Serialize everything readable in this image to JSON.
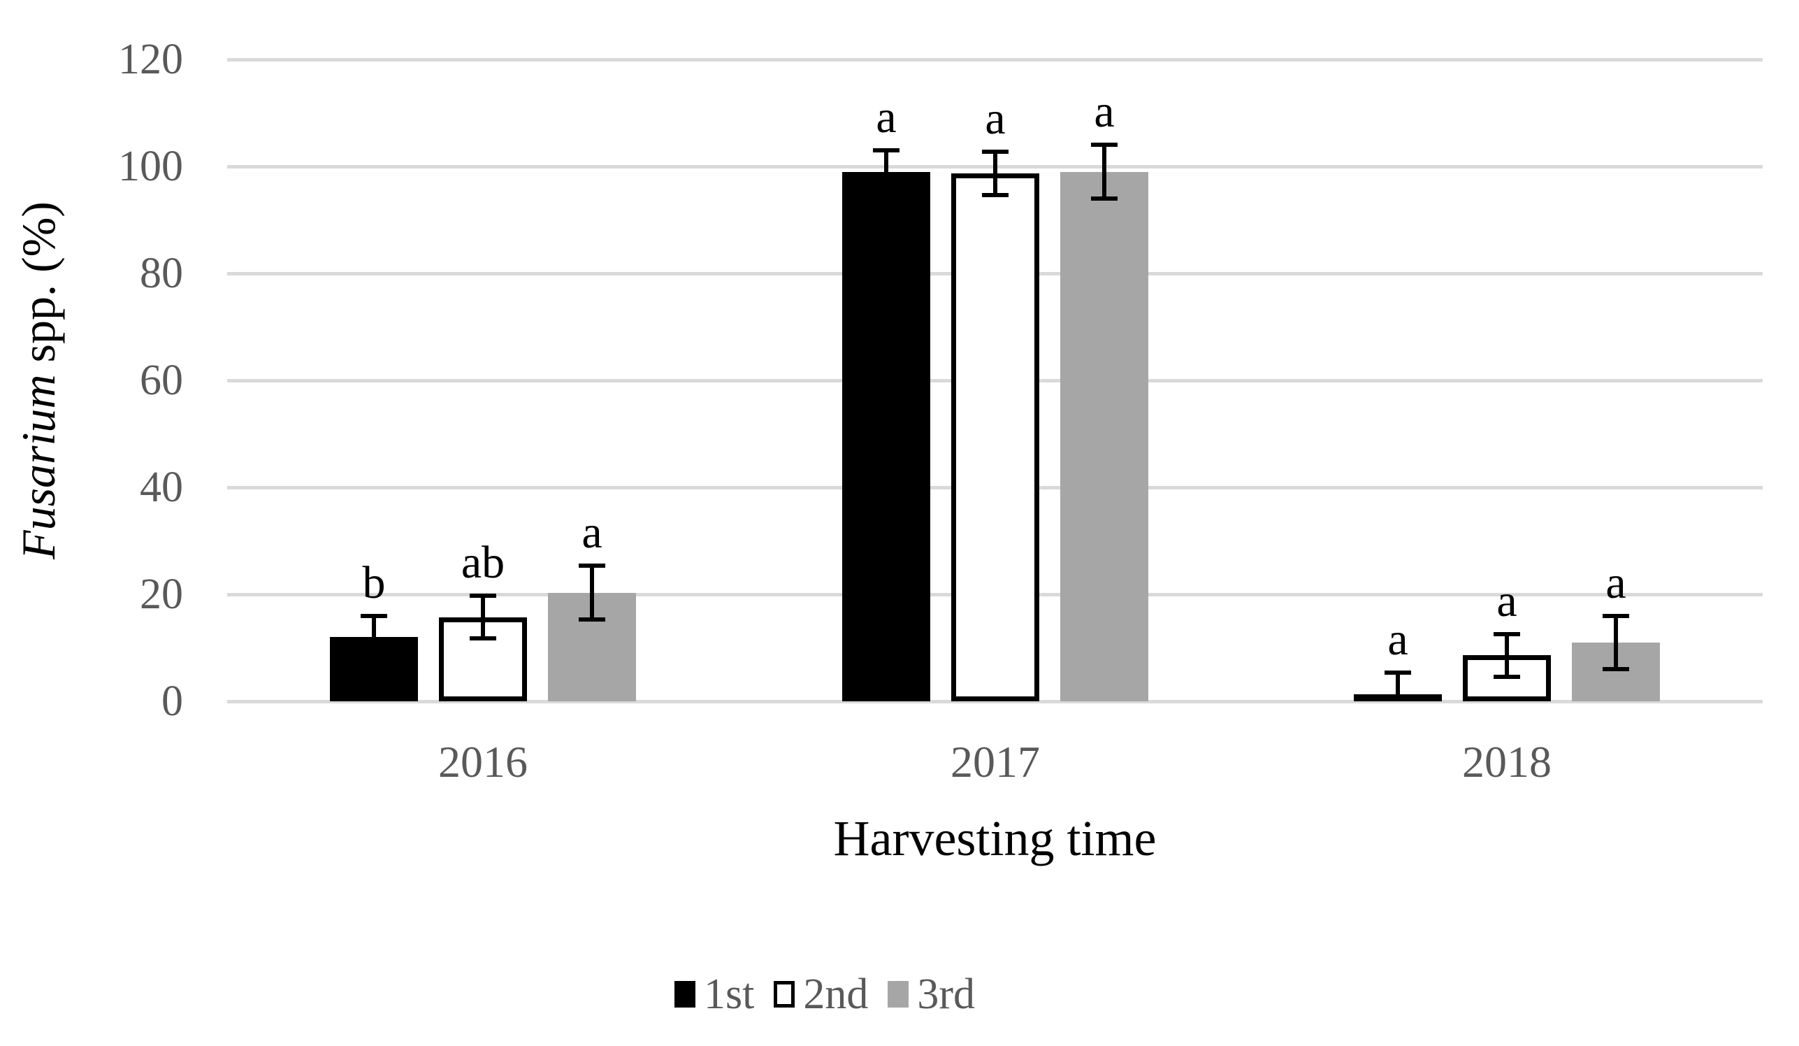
{
  "chart_data": {
    "type": "bar",
    "title": "",
    "xlabel": "Harvesting time",
    "ylabel_italic": "Fusarium",
    "ylabel_regular": " spp. (%)",
    "categories": [
      "2016",
      "2017",
      "2018"
    ],
    "y_axis": {
      "min": 0,
      "max": 120,
      "step": 20,
      "tick_labels": [
        "0",
        "20",
        "40",
        "60",
        "80",
        "100",
        "120"
      ]
    },
    "grid": true,
    "legend_position": "bottom",
    "series": [
      {
        "name": "1st",
        "fill": "#000000",
        "border": "#000000",
        "values": [
          12,
          99,
          1.3
        ],
        "errors": [
          4,
          4,
          4
        ],
        "error_direction": "plus",
        "letters": [
          "b",
          "a",
          "a"
        ]
      },
      {
        "name": "2nd",
        "fill": "#ffffff",
        "border": "#000000",
        "values": [
          15.7,
          98.7,
          8.6
        ],
        "errors": [
          4,
          4,
          4
        ],
        "error_direction": "both",
        "letters": [
          "ab",
          "a",
          "a"
        ]
      },
      {
        "name": "3rd",
        "fill": "#a6a6a6",
        "border": "#a6a6a6",
        "values": [
          20.3,
          99,
          11
        ],
        "errors": [
          5,
          5,
          5
        ],
        "error_direction": "both",
        "letters": [
          "a",
          "a",
          "a"
        ]
      }
    ],
    "colors": {
      "gridline": "#d9d9d9",
      "tick_text": "#595959",
      "annotation_text": "#000000",
      "error_bar": "#000000"
    }
  }
}
